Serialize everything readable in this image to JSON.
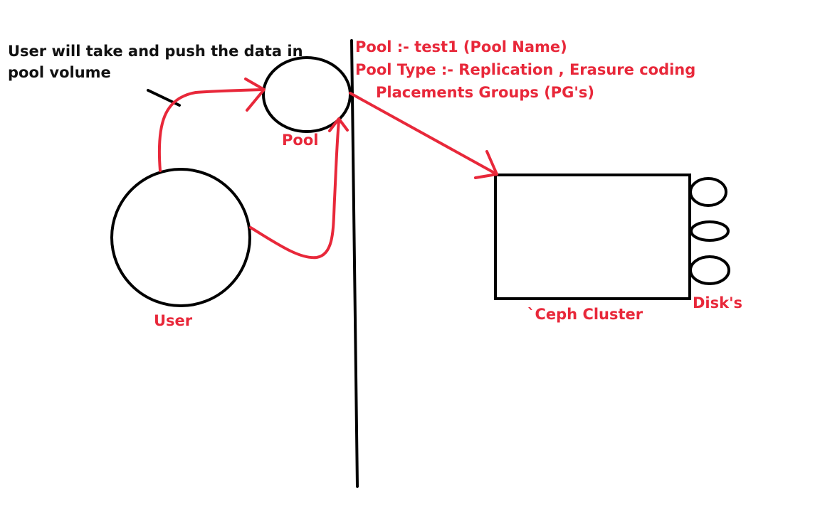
{
  "diagram": {
    "note_line1": "User will take and push the data in",
    "note_line2": "pool volume",
    "pool_label": "Pool",
    "user_label": "User",
    "pool_info": {
      "line1": "Pool :- test1 (Pool Name)",
      "line2": "Pool Type :- Replication , Erasure coding",
      "line3": "Placements Groups (PG's)"
    },
    "cluster_label": "`Ceph Cluster",
    "disks_label": "Disk's"
  },
  "colors": {
    "accent": "#e8283a",
    "ink": "#000000"
  }
}
